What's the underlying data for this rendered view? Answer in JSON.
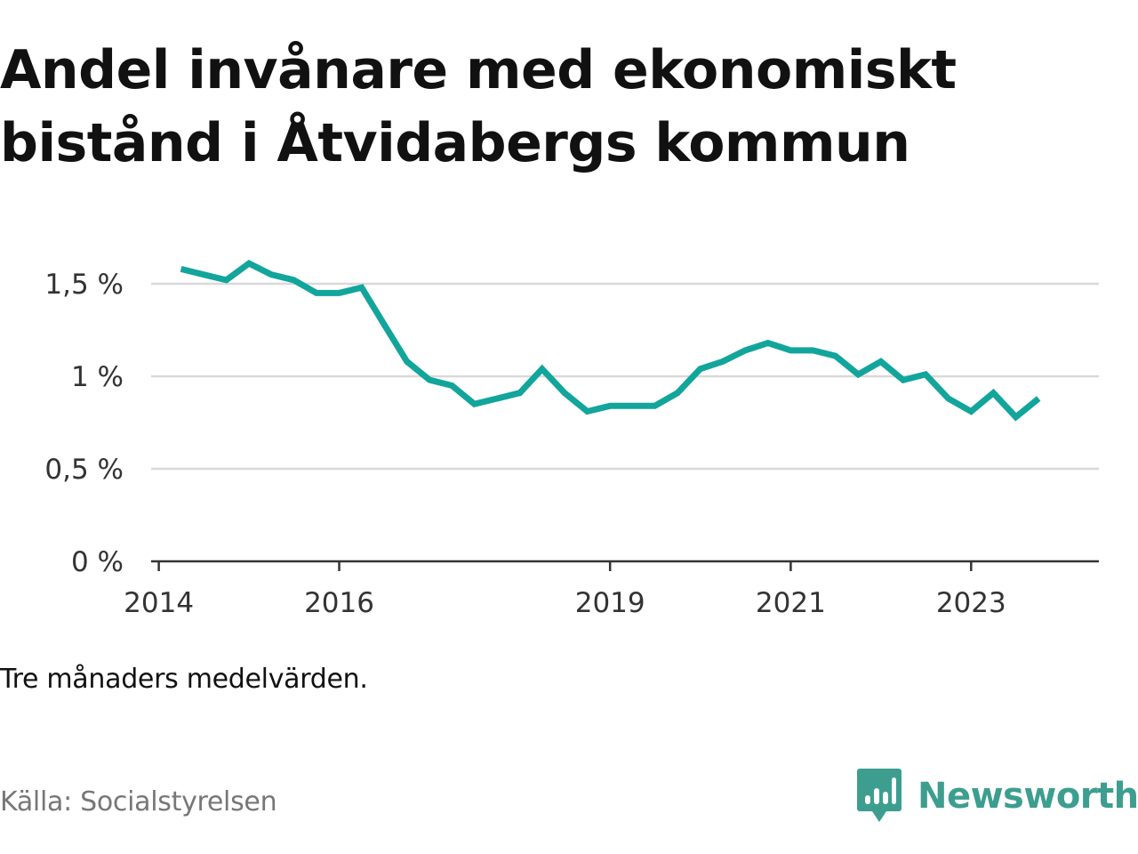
{
  "header": {
    "title": "Andel invånare med ekonomiskt bistånd i Åtvidabergs kommun"
  },
  "footer": {
    "note": "Tre månaders medelvärden.",
    "source": "Källa: Socialstyrelsen",
    "brand": "Newsworthy"
  },
  "icons": {
    "brand_logo": "bar-chart-speech-bubble-icon"
  },
  "colors": {
    "line": "#12a59b",
    "grid": "#d9d9d9",
    "axis": "#333333",
    "brand": "#3d9e8f"
  },
  "chart_data": {
    "type": "line",
    "title": "Andel invånare med ekonomiskt bistånd i Åtvidabergs kommun",
    "xlabel": "",
    "ylabel": "",
    "grid": true,
    "legend": "none",
    "y_ticks": [
      {
        "value": 0,
        "label": "0 %"
      },
      {
        "value": 0.5,
        "label": "0,5 %"
      },
      {
        "value": 1,
        "label": "1 %"
      },
      {
        "value": 1.5,
        "label": "1,5 %"
      }
    ],
    "x_ticks": [
      {
        "value": "2014-01-01",
        "label": "2014"
      },
      {
        "value": "2016-01-01",
        "label": "2016"
      },
      {
        "value": "2019-01-01",
        "label": "2019"
      },
      {
        "value": "2021-01-01",
        "label": "2021"
      },
      {
        "value": "2023-01-01",
        "label": "2023"
      }
    ],
    "x_range": [
      "2013-12-01",
      "2024-06-01"
    ],
    "ylim": [
      0,
      1.7
    ],
    "series": [
      {
        "values": [
          {
            "x": "2014-04-01",
            "y": 1.58
          },
          {
            "x": "2014-07-01",
            "y": 1.55
          },
          {
            "x": "2014-10-01",
            "y": 1.52
          },
          {
            "x": "2015-01-01",
            "y": 1.61
          },
          {
            "x": "2015-04-01",
            "y": 1.55
          },
          {
            "x": "2015-07-01",
            "y": 1.52
          },
          {
            "x": "2015-10-01",
            "y": 1.45
          },
          {
            "x": "2016-01-01",
            "y": 1.45
          },
          {
            "x": "2016-04-01",
            "y": 1.48
          },
          {
            "x": "2016-07-01",
            "y": 1.28
          },
          {
            "x": "2016-10-01",
            "y": 1.08
          },
          {
            "x": "2017-01-01",
            "y": 0.98
          },
          {
            "x": "2017-04-01",
            "y": 0.95
          },
          {
            "x": "2017-07-01",
            "y": 0.85
          },
          {
            "x": "2017-10-01",
            "y": 0.88
          },
          {
            "x": "2018-01-01",
            "y": 0.91
          },
          {
            "x": "2018-04-01",
            "y": 1.04
          },
          {
            "x": "2018-07-01",
            "y": 0.91
          },
          {
            "x": "2018-10-01",
            "y": 0.81
          },
          {
            "x": "2019-01-01",
            "y": 0.84
          },
          {
            "x": "2019-04-01",
            "y": 0.84
          },
          {
            "x": "2019-07-01",
            "y": 0.84
          },
          {
            "x": "2019-10-01",
            "y": 0.91
          },
          {
            "x": "2020-01-01",
            "y": 1.04
          },
          {
            "x": "2020-04-01",
            "y": 1.08
          },
          {
            "x": "2020-07-01",
            "y": 1.14
          },
          {
            "x": "2020-10-01",
            "y": 1.18
          },
          {
            "x": "2021-01-01",
            "y": 1.14
          },
          {
            "x": "2021-04-01",
            "y": 1.14
          },
          {
            "x": "2021-07-01",
            "y": 1.11
          },
          {
            "x": "2021-10-01",
            "y": 1.01
          },
          {
            "x": "2022-01-01",
            "y": 1.08
          },
          {
            "x": "2022-04-01",
            "y": 0.98
          },
          {
            "x": "2022-07-01",
            "y": 1.01
          },
          {
            "x": "2022-10-01",
            "y": 0.88
          },
          {
            "x": "2023-01-01",
            "y": 0.81
          },
          {
            "x": "2023-04-01",
            "y": 0.91
          },
          {
            "x": "2023-07-01",
            "y": 0.78
          },
          {
            "x": "2023-10-01",
            "y": 0.88
          }
        ]
      }
    ]
  }
}
